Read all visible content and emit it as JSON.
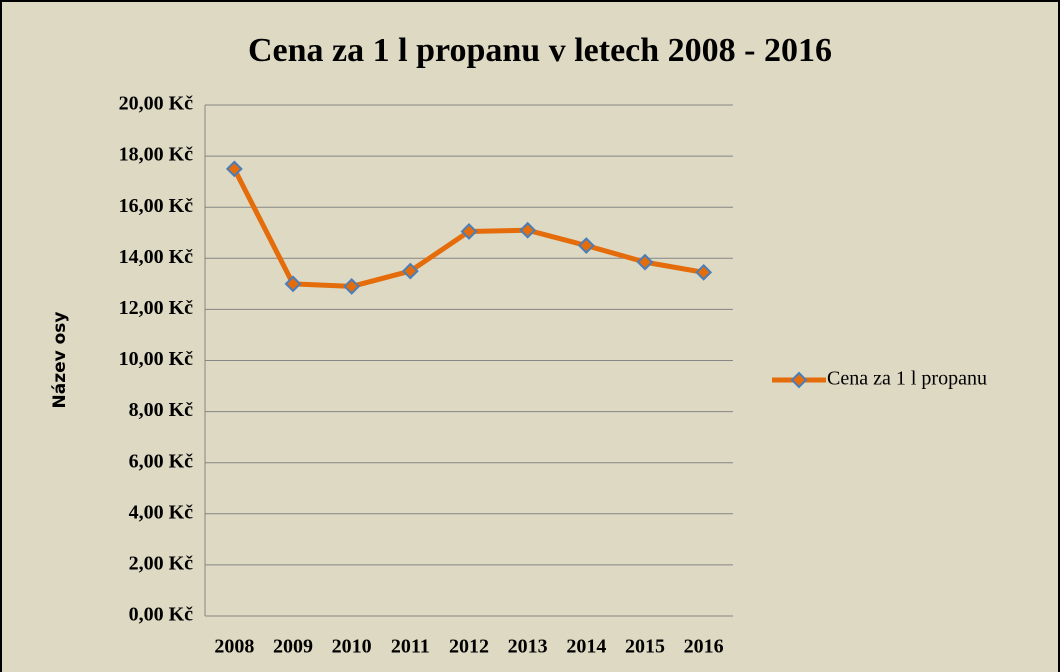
{
  "chart_data": {
    "type": "line",
    "title": "Cena za 1 l propanu v letech 2008 - 2016",
    "y_label": "Název osy",
    "categories": [
      "2008",
      "2009",
      "2010",
      "2011",
      "2012",
      "2013",
      "2014",
      "2015",
      "2016"
    ],
    "series": [
      {
        "name": "Cena za 1 l propanu",
        "color": "#e46c0a",
        "marker_color": "#4a7ebb",
        "values": [
          17.5,
          13.0,
          12.9,
          13.5,
          15.05,
          15.1,
          14.5,
          13.85,
          13.45
        ]
      }
    ],
    "ylim": [
      0,
      20
    ],
    "yticks": [
      {
        "value": 0,
        "label": "0,00 Kč"
      },
      {
        "value": 2,
        "label": "2,00 Kč"
      },
      {
        "value": 4,
        "label": "4,00 Kč"
      },
      {
        "value": 6,
        "label": "6,00 Kč"
      },
      {
        "value": 8,
        "label": "8,00 Kč"
      },
      {
        "value": 10,
        "label": "10,00 Kč"
      },
      {
        "value": 12,
        "label": "12,00 Kč"
      },
      {
        "value": 14,
        "label": "14,00 Kč"
      },
      {
        "value": 16,
        "label": "16,00 Kč"
      },
      {
        "value": 18,
        "label": "18,00 Kč"
      },
      {
        "value": 20,
        "label": "20,00 Kč"
      }
    ],
    "grid": true,
    "legend": "right"
  }
}
